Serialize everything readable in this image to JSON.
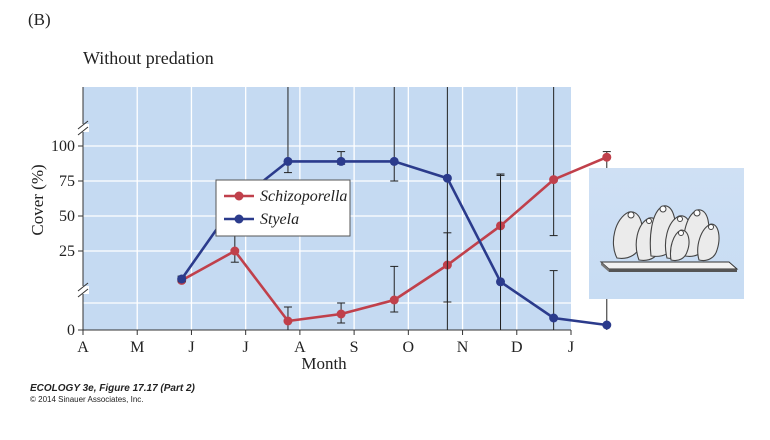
{
  "panel_label": "(B)",
  "credit": {
    "line1": "ECOLOGY 3e, Figure 17.17 (Part 2)",
    "line2": "© 2014 Sinauer Associates, Inc."
  },
  "inset_icon": "sea-squirt-cluster-illustration",
  "colors": {
    "plot_bg": "#c5daf2",
    "schizoporella": "#c0404b",
    "styela": "#2b3b8c",
    "gridline": "#ffffff",
    "inset_bg": "#cfe0f4"
  },
  "chart_data": {
    "type": "line",
    "title": "Without predation",
    "xlabel": "Month",
    "ylabel": "Cover (%)",
    "x_ticks": [
      "A",
      "M",
      "J",
      "J",
      "A",
      "S",
      "O",
      "N",
      "D",
      "J"
    ],
    "y_ticks": [
      "0",
      "25",
      "50",
      "75",
      "100"
    ],
    "y_axis_broken": true,
    "grid": true,
    "legend_position": "center",
    "series": [
      {
        "name": "Schizoporella",
        "color": "#c0404b",
        "points": [
          {
            "x": 1.82,
            "y": 4,
            "err_low": 7,
            "err_high": 3
          },
          {
            "x": 2.8,
            "y": 25,
            "err_low": 17,
            "err_high": 37
          },
          {
            "x": 3.78,
            "y": -27,
            "err_low": -36,
            "err_high": -13
          },
          {
            "x": 4.76,
            "y": -20,
            "err_low": -29,
            "err_high": -9
          },
          {
            "x": 5.74,
            "y": -6,
            "err_low": -18,
            "err_high": 14
          },
          {
            "x": 6.72,
            "y": 15,
            "err_low": -8,
            "err_high": 38
          },
          {
            "x": 7.7,
            "y": 43,
            "err_low": -36,
            "err_high": 79
          },
          {
            "x": 8.68,
            "y": 76,
            "err_low": 36,
            "err_high": 100
          },
          {
            "x": 9.66,
            "y": 92,
            "err_low": 72,
            "err_high": 96
          }
        ]
      },
      {
        "name": "Styela",
        "color": "#2b3b8c",
        "points": [
          {
            "x": 1.82,
            "y": 5,
            "err_low": 7,
            "err_high": 3
          },
          {
            "x": 2.8,
            "y": 59,
            "err_low": 42,
            "err_high": 75
          },
          {
            "x": 3.78,
            "y": 89,
            "err_low": 81,
            "err_high": 100
          },
          {
            "x": 4.76,
            "y": 89,
            "err_low": 87,
            "err_high": 96
          },
          {
            "x": 5.74,
            "y": 89,
            "err_low": 75,
            "err_high": 100
          },
          {
            "x": 6.72,
            "y": 77,
            "err_low": -36,
            "err_high": 100
          },
          {
            "x": 7.7,
            "y": 3,
            "err_low": -36,
            "err_high": 80
          },
          {
            "x": 8.68,
            "y": -24,
            "err_low": -36,
            "err_high": 11
          },
          {
            "x": 9.66,
            "y": -31,
            "err_low": -36,
            "err_high": 4
          }
        ]
      }
    ]
  }
}
